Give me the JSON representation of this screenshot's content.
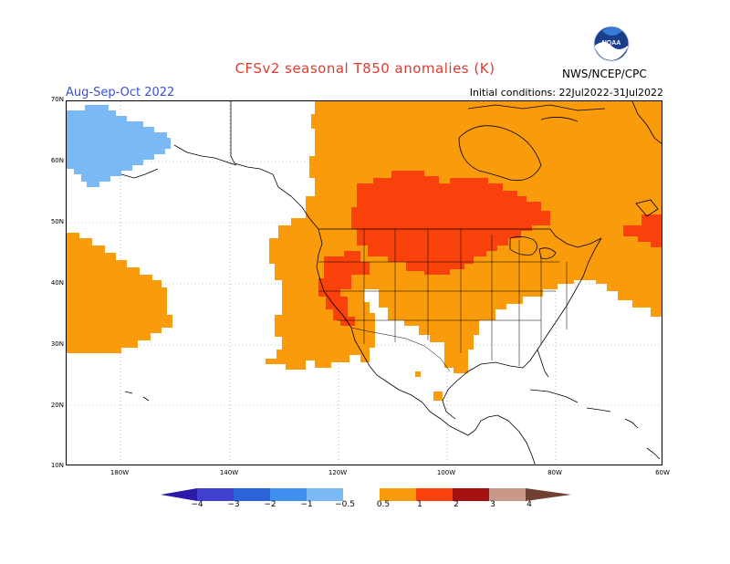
{
  "header": {
    "title": "CFSv2 seasonal T850 anomalies (K)",
    "period": "Aug-Sep-Oct 2022",
    "initial_conditions": "Initial conditions: 22Jul2022-31Jul2022",
    "agency": "NWS/NCEP/CPC",
    "logo_text": "NOAA"
  },
  "map": {
    "lat_labels": [
      "70N",
      "60N",
      "50N",
      "40N",
      "30N",
      "20N",
      "10N"
    ],
    "lon_labels": [
      "180W",
      "140W",
      "120W",
      "100W",
      "80W",
      "60W"
    ],
    "grid": "dotted"
  },
  "colorbar": {
    "ticks": [
      "−4",
      "−3",
      "−2",
      "−1",
      "−0.5",
      "0.5",
      "1",
      "2",
      "3",
      "4"
    ],
    "colors": {
      "lt_-4": "#2a1aa8",
      "-4_-3": "#4040d0",
      "-3_-2": "#2a64d8",
      "-2_-1": "#3f8ff0",
      "-1_-0.5": "#7ab8f6",
      "-0.5_0.5": "#ffffff",
      "0.5_1": "#f99b0b",
      "1_2": "#f9410b",
      "2_3": "#a51010",
      "3_4": "#c89888",
      "gt_4": "#704030"
    }
  }
}
